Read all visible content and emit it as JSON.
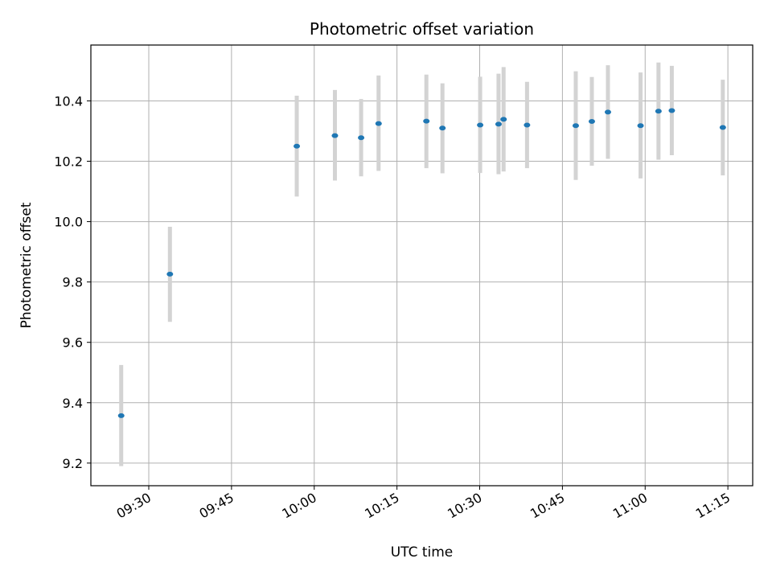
{
  "chart_data": {
    "type": "scatter",
    "title": "Photometric offset variation",
    "xlabel": "UTC time",
    "ylabel": "Photometric offset",
    "grid": true,
    "xlim": [
      "09:19:30",
      "11:19:30"
    ],
    "ylim": [
      9.125,
      10.585
    ],
    "x_ticks": [
      "09:30",
      "09:45",
      "10:00",
      "10:15",
      "10:30",
      "10:45",
      "11:00",
      "11:15"
    ],
    "y_ticks": [
      "9.2",
      "9.4",
      "9.6",
      "9.8",
      "10.0",
      "10.2",
      "10.4"
    ],
    "marker_color": "#1f77b4",
    "errorbar_color": "#d3d3d3",
    "points": [
      {
        "time": "09:25:00",
        "y": 9.357,
        "err_low": 9.19,
        "err_high": 9.525
      },
      {
        "time": "09:33:50",
        "y": 9.826,
        "err_low": 9.668,
        "err_high": 9.983
      },
      {
        "time": "09:56:50",
        "y": 10.25,
        "err_low": 10.083,
        "err_high": 10.417
      },
      {
        "time": "10:03:45",
        "y": 10.285,
        "err_low": 10.136,
        "err_high": 10.436
      },
      {
        "time": "10:08:30",
        "y": 10.278,
        "err_low": 10.15,
        "err_high": 10.406
      },
      {
        "time": "10:11:40",
        "y": 10.325,
        "err_low": 10.168,
        "err_high": 10.484
      },
      {
        "time": "10:20:20",
        "y": 10.333,
        "err_low": 10.177,
        "err_high": 10.487
      },
      {
        "time": "10:23:15",
        "y": 10.31,
        "err_low": 10.16,
        "err_high": 10.458
      },
      {
        "time": "10:30:05",
        "y": 10.32,
        "err_low": 10.161,
        "err_high": 10.48
      },
      {
        "time": "10:33:25",
        "y": 10.323,
        "err_low": 10.157,
        "err_high": 10.49
      },
      {
        "time": "10:34:20",
        "y": 10.339,
        "err_low": 10.166,
        "err_high": 10.512
      },
      {
        "time": "10:38:35",
        "y": 10.32,
        "err_low": 10.177,
        "err_high": 10.463
      },
      {
        "time": "10:47:25",
        "y": 10.318,
        "err_low": 10.138,
        "err_high": 10.498
      },
      {
        "time": "10:50:20",
        "y": 10.332,
        "err_low": 10.185,
        "err_high": 10.479
      },
      {
        "time": "10:53:15",
        "y": 10.363,
        "err_low": 10.208,
        "err_high": 10.518
      },
      {
        "time": "10:59:10",
        "y": 10.318,
        "err_low": 10.143,
        "err_high": 10.494
      },
      {
        "time": "11:02:25",
        "y": 10.366,
        "err_low": 10.205,
        "err_high": 10.527
      },
      {
        "time": "11:04:50",
        "y": 10.368,
        "err_low": 10.22,
        "err_high": 10.516
      },
      {
        "time": "11:14:05",
        "y": 10.312,
        "err_low": 10.153,
        "err_high": 10.47
      }
    ]
  }
}
